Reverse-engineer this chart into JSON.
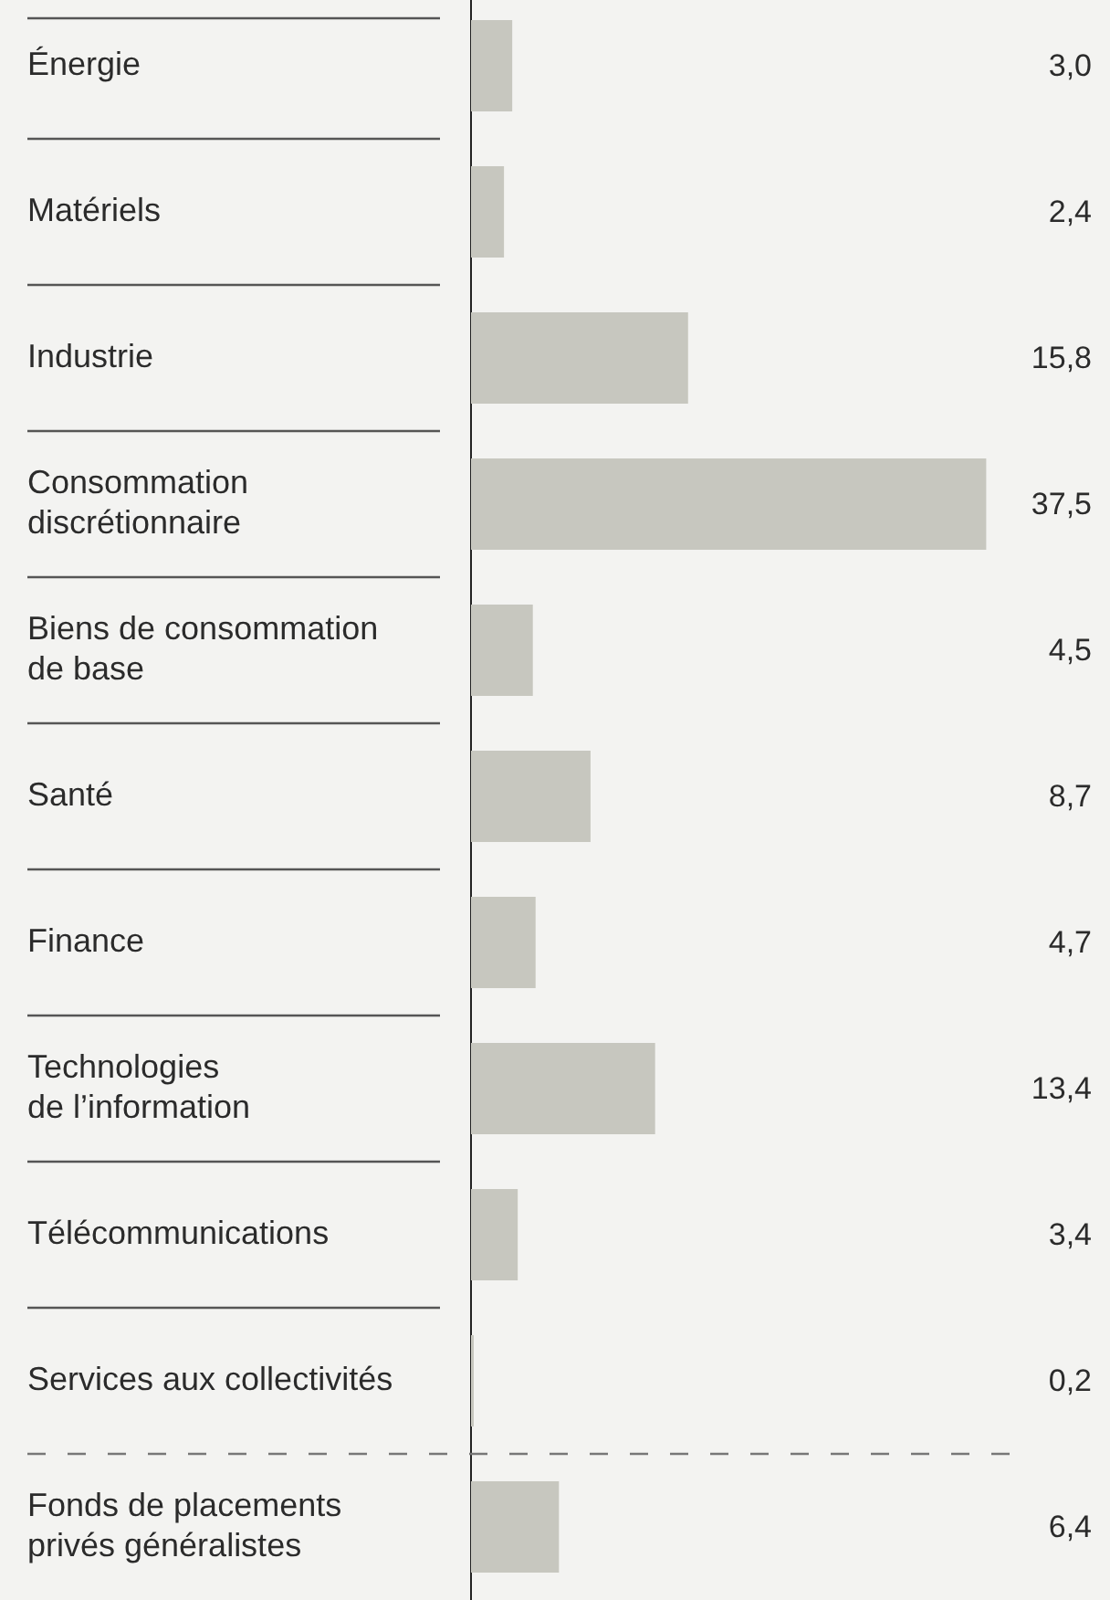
{
  "chart_data": {
    "type": "bar",
    "orientation": "horizontal",
    "categories": [
      "Énergie",
      "Matériels",
      "Industrie",
      "Consommation\ndiscrétionnaire",
      "Biens de consommation\nde base",
      "Santé",
      "Finance",
      "Technologies\nde l’information",
      "Télécommunications",
      "Services aux collectivités",
      "Fonds de placements\nprivés généralistes"
    ],
    "values": [
      3.0,
      2.4,
      15.8,
      37.5,
      4.5,
      8.7,
      4.7,
      13.4,
      3.4,
      0.2,
      6.4
    ],
    "value_labels": [
      "3,0",
      "2,4",
      "15,8",
      "37,5",
      "4,5",
      "8,7",
      "4,7",
      "13,4",
      "3,4",
      "0,2",
      "6,4"
    ],
    "color": "#c7c7bf",
    "grid": "y",
    "tick_labels": "y"
  }
}
